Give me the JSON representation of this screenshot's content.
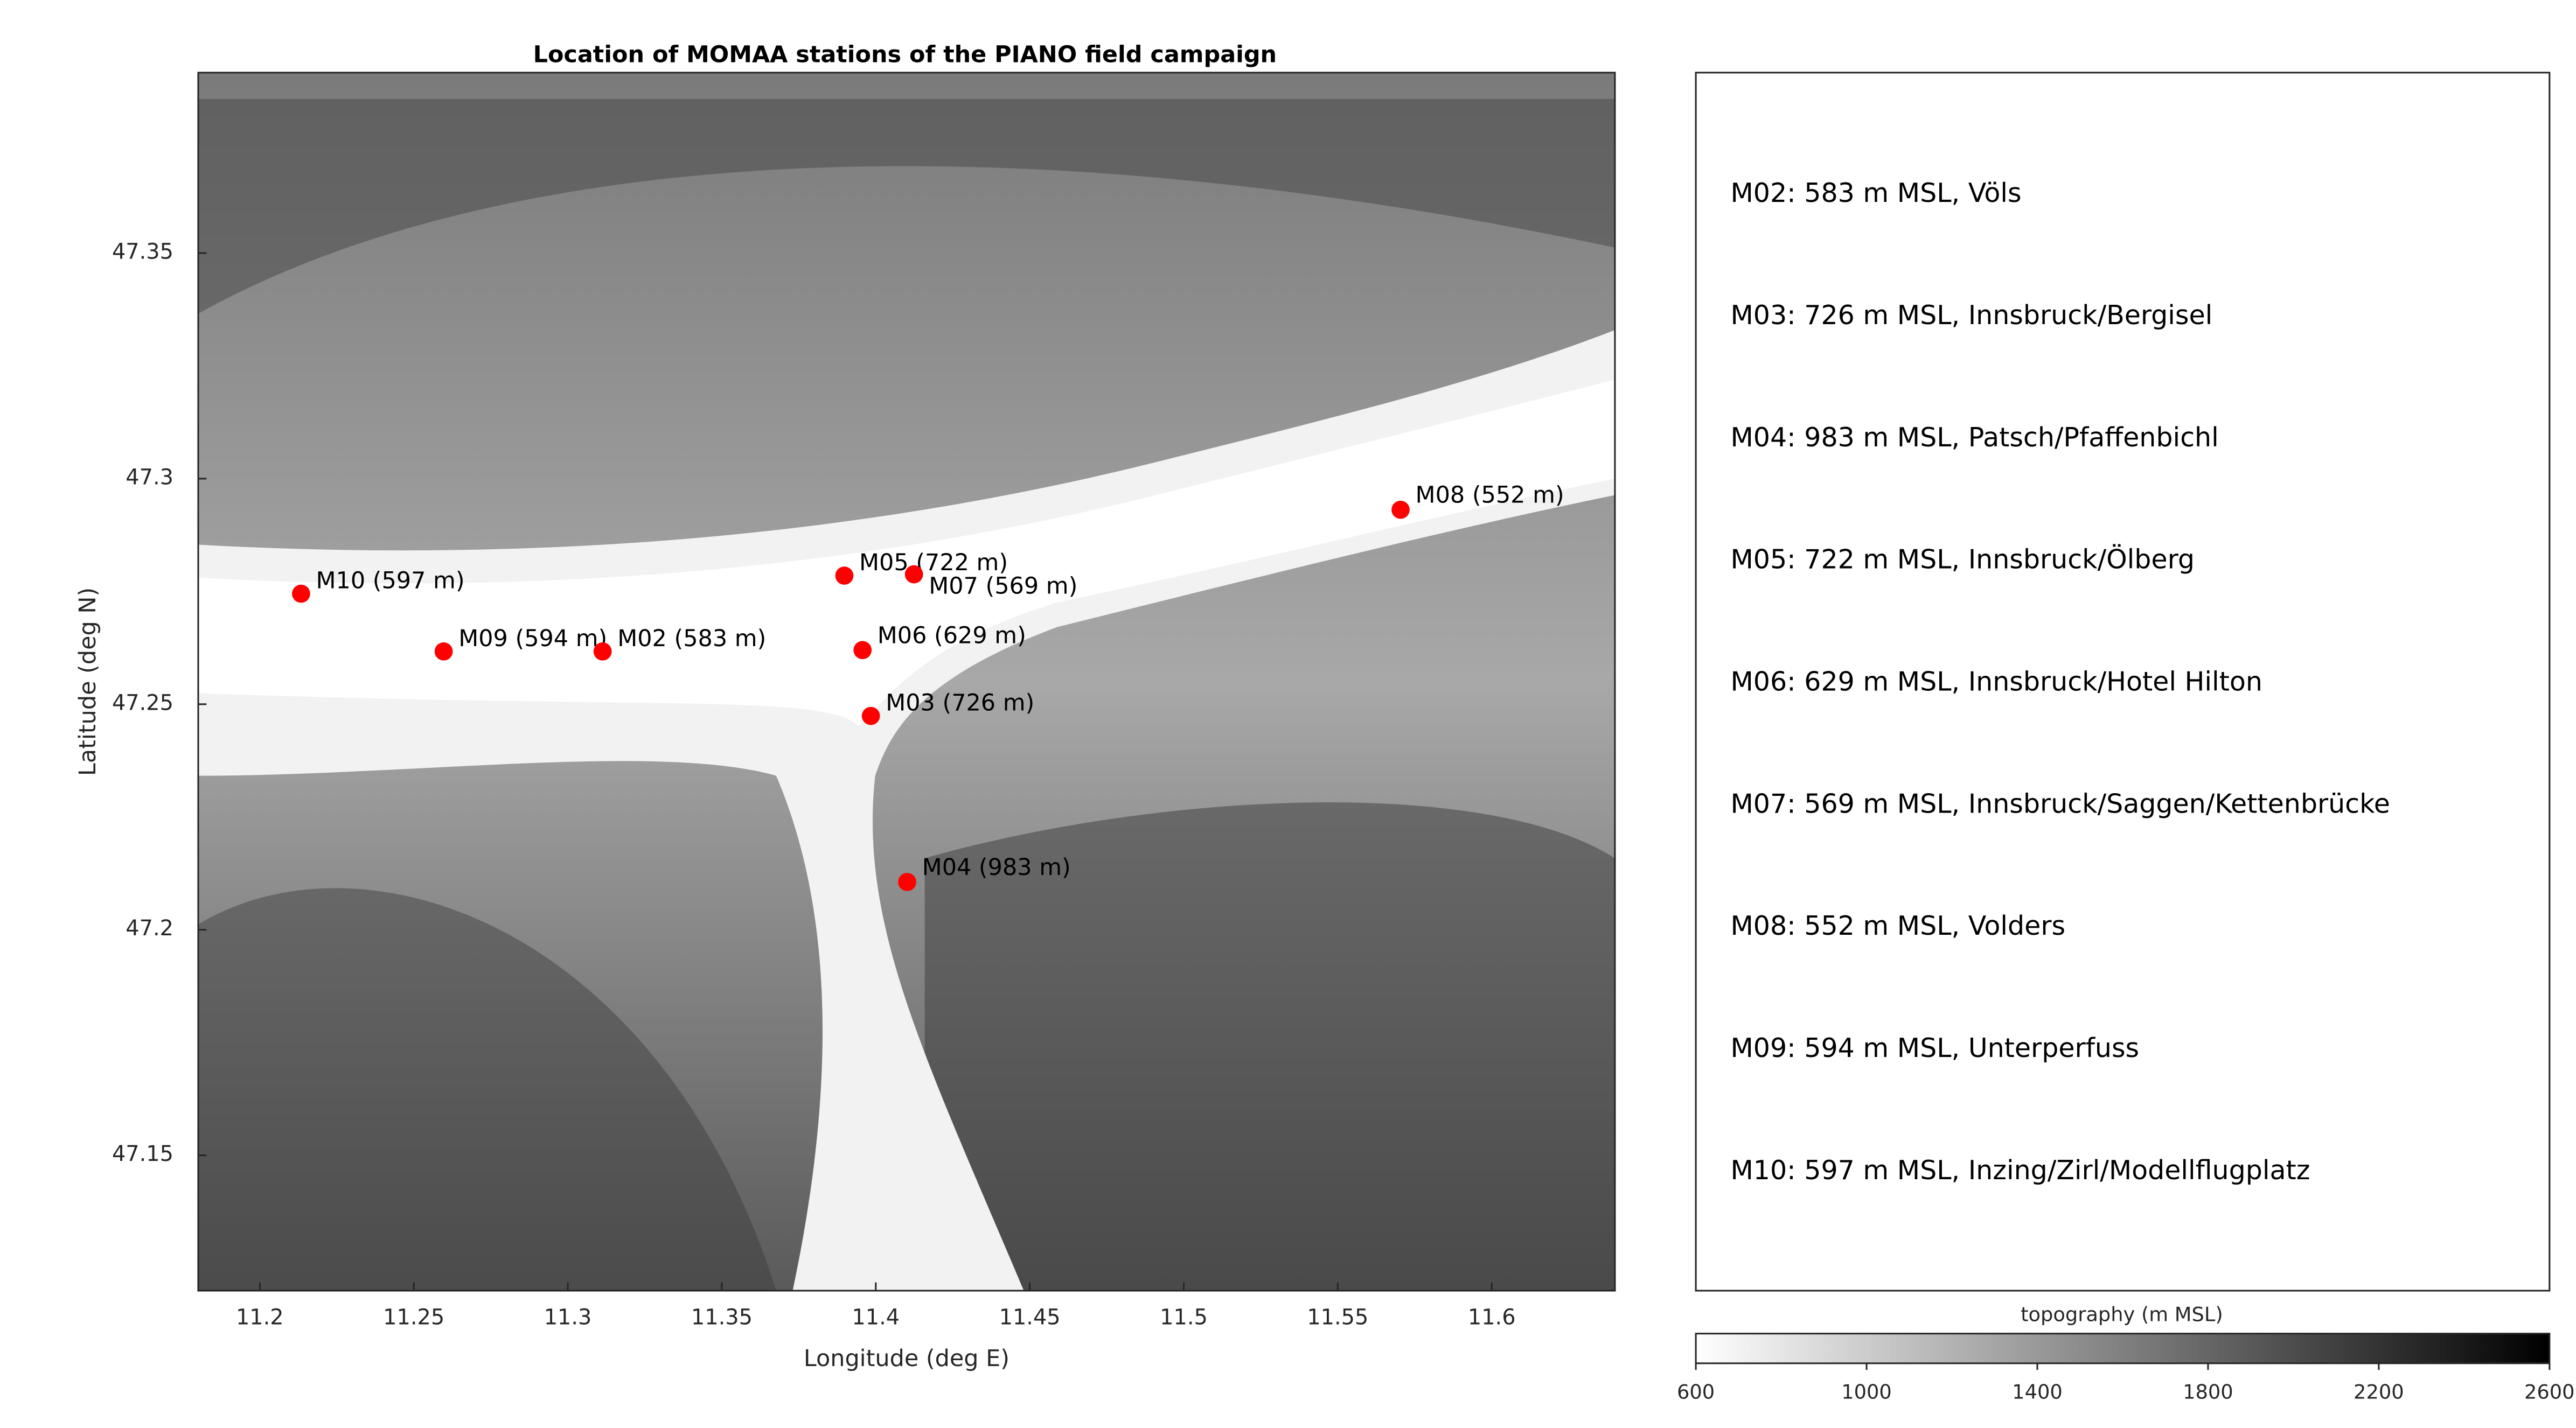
{
  "chart_data": {
    "type": "scatter",
    "title": "Location of MOMAA stations of the PIANO field campaign",
    "xlabel": "Longitude (deg E)",
    "ylabel": "Latitude (deg N)",
    "x": [
      11.2134,
      11.2597,
      11.3113,
      11.3898,
      11.4124,
      11.3957,
      11.3984,
      11.4102,
      11.5704
    ],
    "y": [
      47.2745,
      47.2617,
      47.2617,
      47.2785,
      47.2788,
      47.262,
      47.2474,
      47.2106,
      47.2931
    ],
    "point_labels": [
      "M10 (597 m)",
      "M09 (594 m)",
      "M02 (583 m)",
      "M05 (722 m)",
      "M07 (569 m)",
      "M06 (629 m)",
      "M03 (726 m)",
      "M04 (983 m)",
      "M08 (552 m)"
    ],
    "color": "#ff0000",
    "xlim": [
      11.18,
      11.64
    ],
    "ylim": [
      47.12,
      47.39
    ],
    "xticks": [
      11.2,
      11.25,
      11.3,
      11.35,
      11.4,
      11.45,
      11.5,
      11.55,
      11.6
    ],
    "yticks": [
      47.15,
      47.2,
      47.25,
      47.3,
      47.35
    ],
    "legend_texts": [
      "M02: 583 m MSL, Völs",
      "M03: 726 m MSL, Innsbruck/Bergisel",
      "M04: 983 m MSL, Patsch/Pfaffenbichl",
      "M05: 722 m MSL, Innsbruck/Ölberg",
      "M06: 629 m MSL, Innsbruck/Hotel Hilton",
      "M07: 569 m MSL, Innsbruck/Saggen/Kettenbrücke",
      "M08: 552 m MSL, Volders",
      "M09: 594 m MSL, Unterperfuss",
      "M10: 597 m MSL, Inzing/Zirl/Modellflugplatz"
    ],
    "colorbar": {
      "label": "topography (m MSL)",
      "lim": [
        600,
        2600
      ],
      "ticks": [
        600,
        1000,
        1400,
        1800,
        2200,
        2600
      ],
      "colors": [
        "#ffffff",
        "#000000"
      ]
    }
  }
}
